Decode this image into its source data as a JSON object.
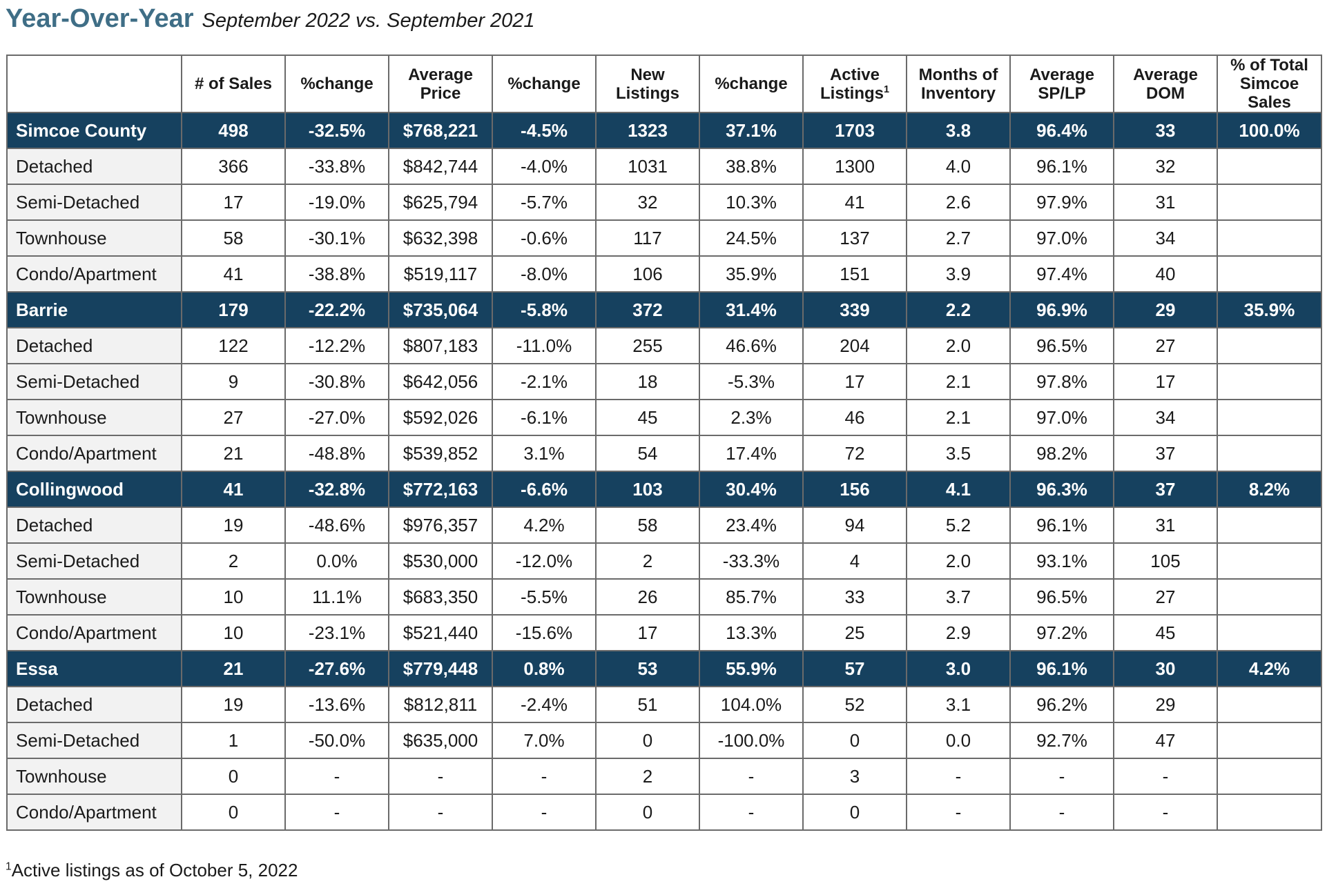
{
  "heading": {
    "title": "Year-Over-Year",
    "subtitle": "September 2022 vs. September 2021"
  },
  "columns": [
    {
      "label": "",
      "sup": ""
    },
    {
      "label": "# of Sales",
      "sup": ""
    },
    {
      "label": "%change",
      "sup": ""
    },
    {
      "label": "Average Price",
      "sup": ""
    },
    {
      "label": "%change",
      "sup": ""
    },
    {
      "label": "New Listings",
      "sup": ""
    },
    {
      "label": "%change",
      "sup": ""
    },
    {
      "label": "Active Listings",
      "sup": "1"
    },
    {
      "label": "Months of Inventory",
      "sup": ""
    },
    {
      "label": "Average SP/LP",
      "sup": ""
    },
    {
      "label": "Average DOM",
      "sup": ""
    },
    {
      "label": "% of Total Simcoe Sales",
      "sup": ""
    }
  ],
  "rows": [
    {
      "kind": "region",
      "cells": [
        "Simcoe County",
        "498",
        "-32.5%",
        "$768,221",
        "-4.5%",
        "1323",
        "37.1%",
        "1703",
        "3.8",
        "96.4%",
        "33",
        "100.0%"
      ]
    },
    {
      "kind": "sub",
      "cells": [
        "Detached",
        "366",
        "-33.8%",
        "$842,744",
        "-4.0%",
        "1031",
        "38.8%",
        "1300",
        "4.0",
        "96.1%",
        "32",
        ""
      ]
    },
    {
      "kind": "sub",
      "cells": [
        "Semi-Detached",
        "17",
        "-19.0%",
        "$625,794",
        "-5.7%",
        "32",
        "10.3%",
        "41",
        "2.6",
        "97.9%",
        "31",
        ""
      ]
    },
    {
      "kind": "sub",
      "cells": [
        "Townhouse",
        "58",
        "-30.1%",
        "$632,398",
        "-0.6%",
        "117",
        "24.5%",
        "137",
        "2.7",
        "97.0%",
        "34",
        ""
      ]
    },
    {
      "kind": "sub",
      "cells": [
        "Condo/Apartment",
        "41",
        "-38.8%",
        "$519,117",
        "-8.0%",
        "106",
        "35.9%",
        "151",
        "3.9",
        "97.4%",
        "40",
        ""
      ]
    },
    {
      "kind": "region",
      "cells": [
        "Barrie",
        "179",
        "-22.2%",
        "$735,064",
        "-5.8%",
        "372",
        "31.4%",
        "339",
        "2.2",
        "96.9%",
        "29",
        "35.9%"
      ]
    },
    {
      "kind": "sub",
      "cells": [
        "Detached",
        "122",
        "-12.2%",
        "$807,183",
        "-11.0%",
        "255",
        "46.6%",
        "204",
        "2.0",
        "96.5%",
        "27",
        ""
      ]
    },
    {
      "kind": "sub",
      "cells": [
        "Semi-Detached",
        "9",
        "-30.8%",
        "$642,056",
        "-2.1%",
        "18",
        "-5.3%",
        "17",
        "2.1",
        "97.8%",
        "17",
        ""
      ]
    },
    {
      "kind": "sub",
      "cells": [
        "Townhouse",
        "27",
        "-27.0%",
        "$592,026",
        "-6.1%",
        "45",
        "2.3%",
        "46",
        "2.1",
        "97.0%",
        "34",
        ""
      ]
    },
    {
      "kind": "sub",
      "cells": [
        "Condo/Apartment",
        "21",
        "-48.8%",
        "$539,852",
        "3.1%",
        "54",
        "17.4%",
        "72",
        "3.5",
        "98.2%",
        "37",
        ""
      ]
    },
    {
      "kind": "region",
      "cells": [
        "Collingwood",
        "41",
        "-32.8%",
        "$772,163",
        "-6.6%",
        "103",
        "30.4%",
        "156",
        "4.1",
        "96.3%",
        "37",
        "8.2%"
      ]
    },
    {
      "kind": "sub",
      "cells": [
        "Detached",
        "19",
        "-48.6%",
        "$976,357",
        "4.2%",
        "58",
        "23.4%",
        "94",
        "5.2",
        "96.1%",
        "31",
        ""
      ]
    },
    {
      "kind": "sub",
      "cells": [
        "Semi-Detached",
        "2",
        "0.0%",
        "$530,000",
        "-12.0%",
        "2",
        "-33.3%",
        "4",
        "2.0",
        "93.1%",
        "105",
        ""
      ]
    },
    {
      "kind": "sub",
      "cells": [
        "Townhouse",
        "10",
        "11.1%",
        "$683,350",
        "-5.5%",
        "26",
        "85.7%",
        "33",
        "3.7",
        "96.5%",
        "27",
        ""
      ]
    },
    {
      "kind": "sub",
      "cells": [
        "Condo/Apartment",
        "10",
        "-23.1%",
        "$521,440",
        "-15.6%",
        "17",
        "13.3%",
        "25",
        "2.9",
        "97.2%",
        "45",
        ""
      ]
    },
    {
      "kind": "region",
      "cells": [
        "Essa",
        "21",
        "-27.6%",
        "$779,448",
        "0.8%",
        "53",
        "55.9%",
        "57",
        "3.0",
        "96.1%",
        "30",
        "4.2%"
      ]
    },
    {
      "kind": "sub",
      "cells": [
        "Detached",
        "19",
        "-13.6%",
        "$812,811",
        "-2.4%",
        "51",
        "104.0%",
        "52",
        "3.1",
        "96.2%",
        "29",
        ""
      ]
    },
    {
      "kind": "sub",
      "cells": [
        "Semi-Detached",
        "1",
        "-50.0%",
        "$635,000",
        "7.0%",
        "0",
        "-100.0%",
        "0",
        "0.0",
        "92.7%",
        "47",
        ""
      ]
    },
    {
      "kind": "sub",
      "cells": [
        "Townhouse",
        "0",
        "-",
        "-",
        "-",
        "2",
        "-",
        "3",
        "-",
        "-",
        "-",
        ""
      ]
    },
    {
      "kind": "sub",
      "cells": [
        "Condo/Apartment",
        "0",
        "-",
        "-",
        "-",
        "0",
        "-",
        "0",
        "-",
        "-",
        "-",
        ""
      ]
    }
  ],
  "footnote": {
    "marker": "1",
    "text": "Active listings as of October 5, 2022"
  },
  "colors": {
    "title": "#3f6e86",
    "region_row_bg": "#16415f",
    "region_row_text": "#ffffff",
    "label_cell_bg": "#f2f2f2",
    "border": "#6a6a6a"
  }
}
